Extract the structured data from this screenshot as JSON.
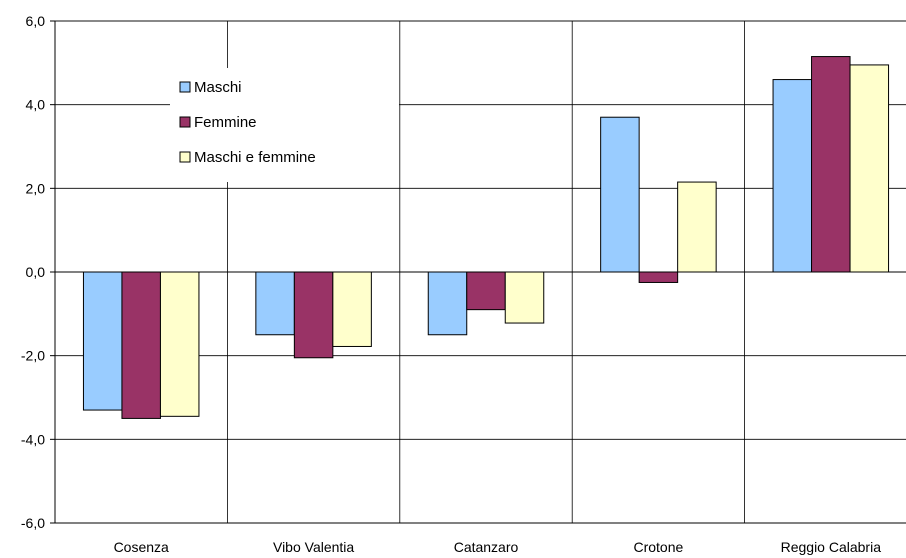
{
  "chart_data": {
    "type": "bar",
    "categories": [
      "Cosenza",
      "Vibo Valentia",
      "Catanzaro",
      "Crotone",
      "Reggio Calabria"
    ],
    "series": [
      {
        "name": "Maschi",
        "color": "#99CCFF",
        "values": [
          -3.3,
          -1.5,
          -1.5,
          3.7,
          4.6
        ]
      },
      {
        "name": "Femmine",
        "color": "#993366",
        "values": [
          -3.5,
          -2.05,
          -0.9,
          -0.25,
          5.15
        ]
      },
      {
        "name": "Maschi e femmine",
        "color": "#FFFFCC",
        "values": [
          -3.45,
          -1.78,
          -1.22,
          2.15,
          4.95
        ]
      }
    ],
    "y_ticks": [
      "6,0",
      "4,0",
      "2,0",
      "0,0",
      "-2,0",
      "-4,0",
      "-6,0"
    ],
    "ylim": [
      -6,
      6
    ],
    "grid": true,
    "legend_position": "top-left"
  }
}
